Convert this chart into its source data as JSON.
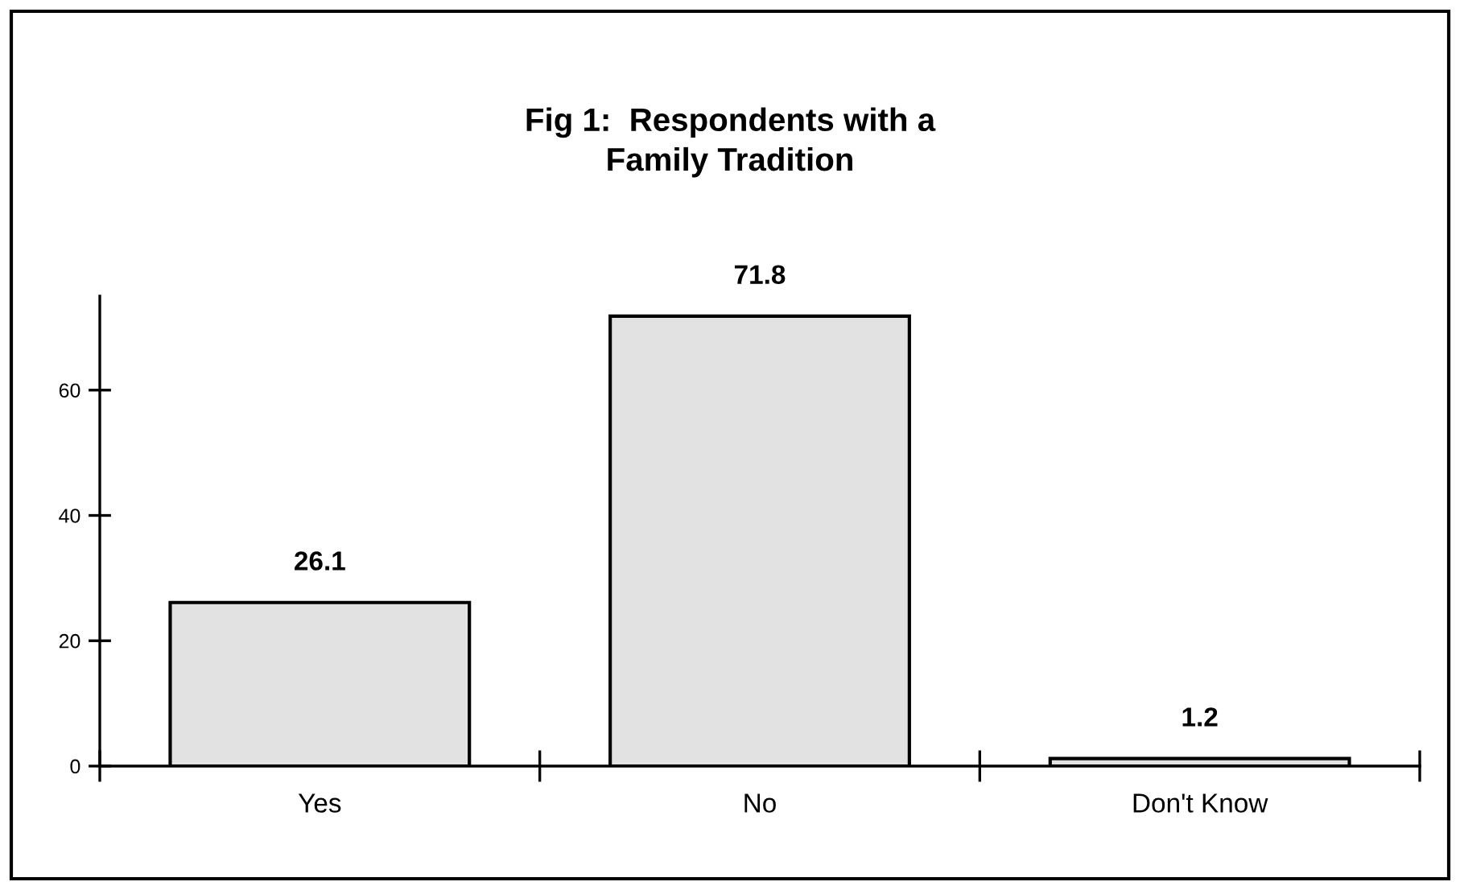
{
  "chart_data": {
    "type": "bar",
    "title": "Fig 1:  Respondents with a\nFamily Tradition",
    "categories": [
      "Yes",
      "No",
      "Don't Know"
    ],
    "values": [
      26.1,
      71.8,
      1.2
    ],
    "color": "#e2e2e2",
    "ylim": [
      0,
      75
    ],
    "yticks": [
      0,
      20,
      40,
      60
    ],
    "data_labels": true,
    "grid": false
  }
}
